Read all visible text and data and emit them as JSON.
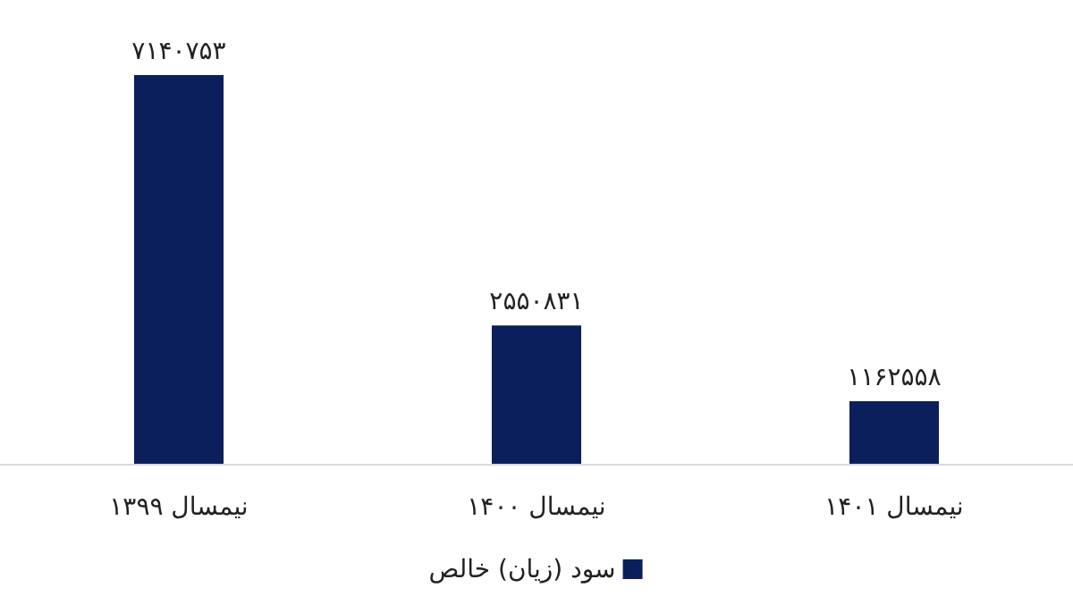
{
  "chart_data": {
    "type": "bar",
    "categories": [
      "نیمسال ۱۳۹۹",
      "نیمسال ۱۴۰۰",
      "نیمسال ۱۴۰۱"
    ],
    "series": [
      {
        "name": "سود (زیان) خالص",
        "color": "#0b1f5c",
        "values": [
          7140753,
          2550831,
          1162558
        ],
        "value_labels": [
          "۷۱۴۰۷۵۳",
          "۲۵۵۰۸۳۱",
          "۱۱۶۲۵۵۸"
        ]
      }
    ],
    "legend": "bottom"
  }
}
